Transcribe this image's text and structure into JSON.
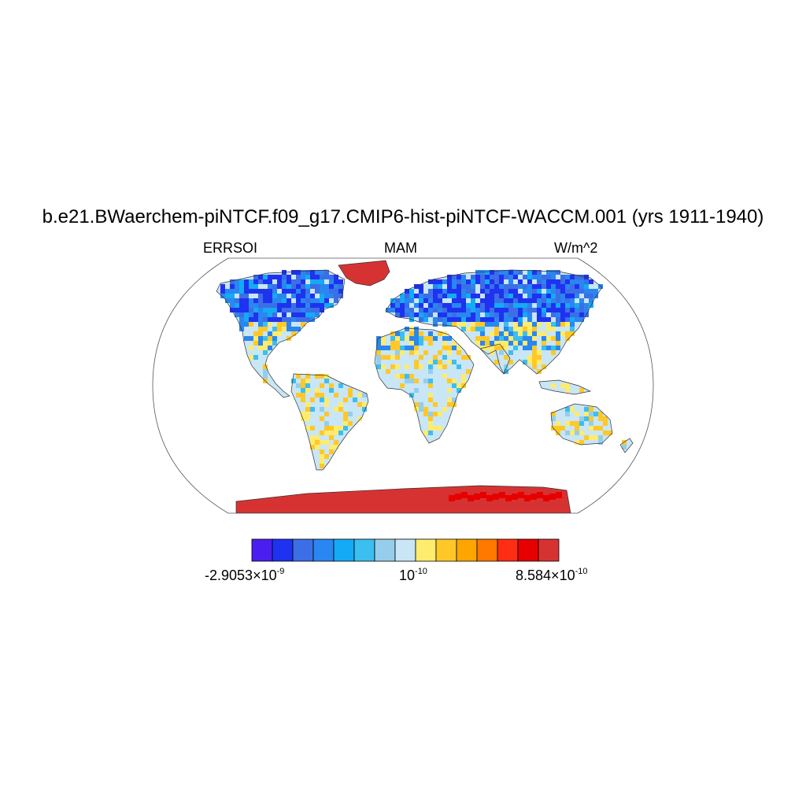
{
  "title": "b.e21.BWaerchem-piNTCF.f09_g17.CMIP6-hist-piNTCF-WACCM.001 (yrs 1911-1940)",
  "left_label": "ERRSOI",
  "center_label": "MAM",
  "right_label": "W/m^2",
  "colorbar": {
    "colors": [
      "#4b1ef0",
      "#1e32f0",
      "#3c6ee6",
      "#2a86f0",
      "#14aaf5",
      "#3cbef0",
      "#96cdeb",
      "#c8e6f5",
      "#ffeb6e",
      "#ffc828",
      "#ffa500",
      "#ff7800",
      "#ff2d14",
      "#e60000",
      "#d73232"
    ],
    "min_mantissa": "-2.9053",
    "min_exponent": "-9",
    "mid_base": "10",
    "mid_exponent": "-10",
    "max_mantissa": "8.584",
    "max_exponent": "-10",
    "times": "×"
  },
  "map_colors": {
    "ocean": "#ffffff",
    "land_default": "#c8e6f5",
    "greenland": "#d73232",
    "antarctica": "#d73232",
    "coast": "#333333"
  }
}
